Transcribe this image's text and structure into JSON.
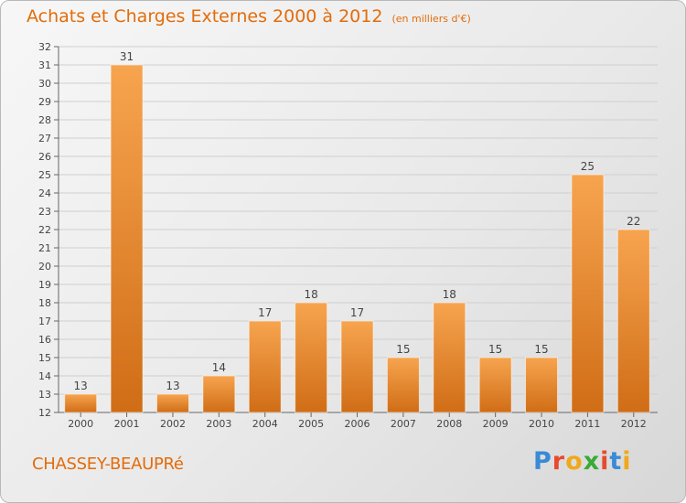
{
  "page": {
    "title": "Achats et Charges Externes 2000 à 2012",
    "subtitle": "(en milliers d'€)",
    "commune": "CHASSEY-BEAUPRé",
    "brand": "Proxiti",
    "brand_colors": [
      "#3a8ad6",
      "#e84a2c",
      "#f0a81c",
      "#3aaa35",
      "#e84a2c",
      "#3a8ad6",
      "#f0a81c"
    ]
  },
  "chart_data": {
    "type": "bar",
    "title": "Achats et Charges Externes 2000 à 2012",
    "subtitle": "(en milliers d'€)",
    "categories": [
      "2000",
      "2001",
      "2002",
      "2003",
      "2004",
      "2005",
      "2006",
      "2007",
      "2008",
      "2009",
      "2010",
      "2011",
      "2012"
    ],
    "values": [
      13,
      31,
      13,
      14,
      17,
      18,
      17,
      15,
      18,
      15,
      15,
      25,
      22
    ],
    "ylim": [
      12,
      32
    ],
    "yticks": [
      12,
      13,
      14,
      15,
      16,
      17,
      18,
      19,
      20,
      21,
      22,
      23,
      24,
      25,
      26,
      27,
      28,
      29,
      30,
      31,
      32
    ],
    "grid": true,
    "bar_color": "#f5a04a",
    "bar_color_dark": "#d26f16"
  }
}
